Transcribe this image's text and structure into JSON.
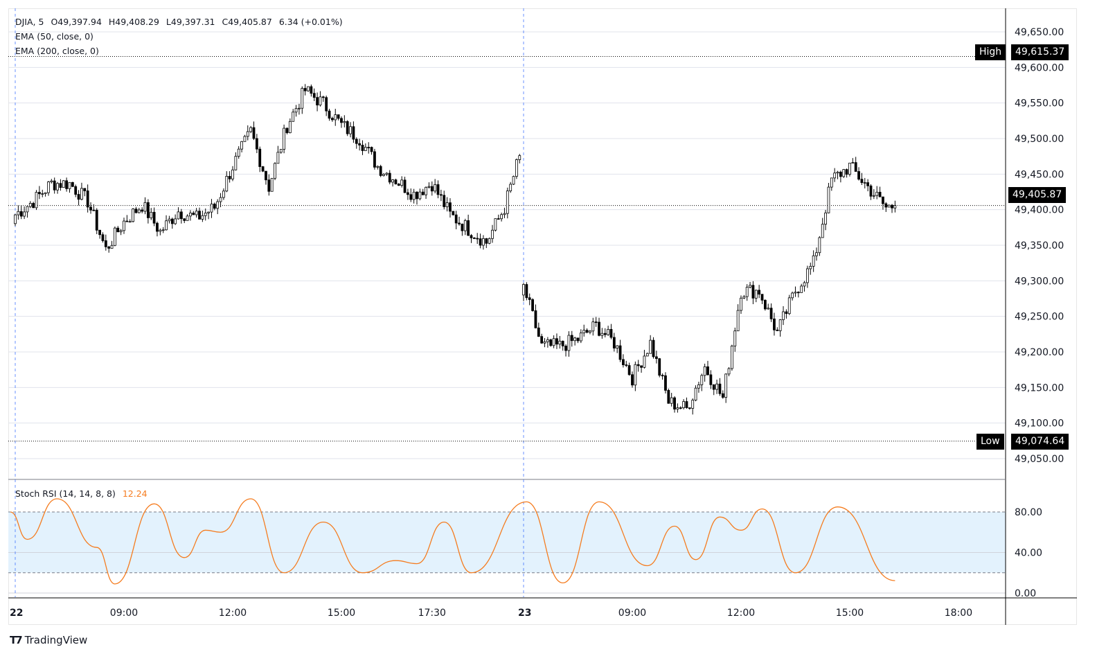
{
  "chart_data": {
    "type": "candlestick",
    "symbol_line": {
      "symbol": "DJIA, 5",
      "open": "O49,397.94",
      "high": "H49,408.29",
      "low": "L49,397.31",
      "close": "C49,405.87",
      "change": "6.34 (+0.01%)"
    },
    "indicators": [
      "EMA (50, close, 0)",
      "EMA (200, close, 0)"
    ],
    "price_axis": {
      "ticks": [
        "49,650.00",
        "49,600.00",
        "49,550.00",
        "49,500.00",
        "49,450.00",
        "49,400.00",
        "49,350.00",
        "49,300.00",
        "49,250.00",
        "49,200.00",
        "49,150.00",
        "49,100.00",
        "49,050.00"
      ],
      "range": [
        49025,
        49670
      ],
      "grid": true
    },
    "time_axis": {
      "ticks": [
        {
          "label": "22",
          "t": "22 06:00"
        },
        {
          "label": "09:00",
          "t": "22 09:00"
        },
        {
          "label": "12:00",
          "t": "22 12:00"
        },
        {
          "label": "15:00",
          "t": "22 15:00"
        },
        {
          "label": "17:30",
          "t": "22 17:30"
        },
        {
          "label": "23",
          "t": "23 06:00"
        },
        {
          "label": "09:00",
          "t": "23 09:00"
        },
        {
          "label": "12:00",
          "t": "23 12:00"
        },
        {
          "label": "15:00",
          "t": "23 15:00"
        },
        {
          "label": "18:00",
          "t": "23 18:00"
        }
      ]
    },
    "session_breaks": [
      "22 06:00",
      "23 06:00"
    ],
    "high_marker": {
      "label": "High",
      "value": 49615.37,
      "text": "49,615.37"
    },
    "low_marker": {
      "label": "Low",
      "value": 49074.64,
      "text": "49,074.64"
    },
    "last_price": {
      "value": 49405.87,
      "text": "49,405.87"
    },
    "close_path": [
      [
        "22 06:00",
        49393
      ],
      [
        "22 06:30",
        49412
      ],
      [
        "22 07:00",
        49437
      ],
      [
        "22 07:30",
        49437
      ],
      [
        "22 08:00",
        49412
      ],
      [
        "22 08:30",
        49344
      ],
      [
        "22 09:00",
        49383
      ],
      [
        "22 09:30",
        49407
      ],
      [
        "22 10:00",
        49369
      ],
      [
        "22 10:30",
        49398
      ],
      [
        "22 11:00",
        49388
      ],
      [
        "22 11:30",
        49403
      ],
      [
        "22 12:00",
        49461
      ],
      [
        "22 12:30",
        49510
      ],
      [
        "22 13:00",
        49432
      ],
      [
        "22 13:30",
        49519
      ],
      [
        "22 14:00",
        49568
      ],
      [
        "22 14:30",
        49549
      ],
      [
        "22 15:00",
        49519
      ],
      [
        "22 15:30",
        49500
      ],
      [
        "22 16:00",
        49461
      ],
      [
        "22 16:30",
        49442
      ],
      [
        "22 17:00",
        49422
      ],
      [
        "22 17:30",
        49437
      ],
      [
        "22 18:00",
        49393
      ],
      [
        "22 18:30",
        49373
      ],
      [
        "22 19:00",
        49354
      ],
      [
        "22 19:30",
        49403
      ],
      [
        "22 19:55",
        49476
      ],
      [
        "23 06:00",
        49291
      ],
      [
        "23 06:30",
        49208
      ],
      [
        "23 07:00",
        49208
      ],
      [
        "23 07:30",
        49218
      ],
      [
        "23 08:00",
        49237
      ],
      [
        "23 08:30",
        49213
      ],
      [
        "23 09:00",
        49164
      ],
      [
        "23 09:30",
        49213
      ],
      [
        "23 10:00",
        49130
      ],
      [
        "23 10:30",
        49120
      ],
      [
        "23 11:00",
        49179
      ],
      [
        "23 11:30",
        49135
      ],
      [
        "23 12:00",
        49286
      ],
      [
        "23 12:30",
        49286
      ],
      [
        "23 13:00",
        49227
      ],
      [
        "23 13:30",
        49286
      ],
      [
        "23 14:00",
        49325
      ],
      [
        "23 14:30",
        49442
      ],
      [
        "23 15:00",
        49461
      ],
      [
        "23 15:30",
        49432
      ],
      [
        "23 16:00",
        49403
      ],
      [
        "23 16:15",
        49405.87
      ]
    ],
    "stoch_rsi": {
      "label": "Stoch RSI (14, 14, 8, 8)",
      "value": "12.24",
      "color": "#f57c1f",
      "ticks": [
        "80.00",
        "40.00",
        "0.00"
      ],
      "band": [
        20,
        80
      ],
      "band_color": "#e3f2fd",
      "points": [
        [
          "22 05:52",
          80
        ],
        [
          "22 06:20",
          53
        ],
        [
          "22 07:09",
          93
        ],
        [
          "22 08:15",
          45
        ],
        [
          "22 08:45",
          9
        ],
        [
          "22 09:50",
          88
        ],
        [
          "22 10:40",
          35
        ],
        [
          "22 11:15",
          62
        ],
        [
          "22 11:40",
          60
        ],
        [
          "22 12:30",
          93
        ],
        [
          "22 13:25",
          20
        ],
        [
          "22 14:30",
          70
        ],
        [
          "22 15:35",
          20
        ],
        [
          "22 16:30",
          32
        ],
        [
          "22 17:05",
          29
        ],
        [
          "22 17:50",
          70
        ],
        [
          "22 18:35",
          20
        ],
        [
          "23 06:05",
          90
        ],
        [
          "23 07:05",
          10
        ],
        [
          "23 08:05",
          90
        ],
        [
          "23 09:25",
          27
        ],
        [
          "23 10:10",
          66
        ],
        [
          "23 10:45",
          33
        ],
        [
          "23 11:25",
          75
        ],
        [
          "23 12:00",
          62
        ],
        [
          "23 12:35",
          83
        ],
        [
          "23 13:30",
          20
        ],
        [
          "23 14:40",
          85
        ],
        [
          "23 16:15",
          12.24
        ]
      ]
    },
    "colors": {
      "up": "#ffffff",
      "down": "#000000",
      "wick": "#000000",
      "stoch": "#f57c1f"
    }
  },
  "brand": "TradingView"
}
